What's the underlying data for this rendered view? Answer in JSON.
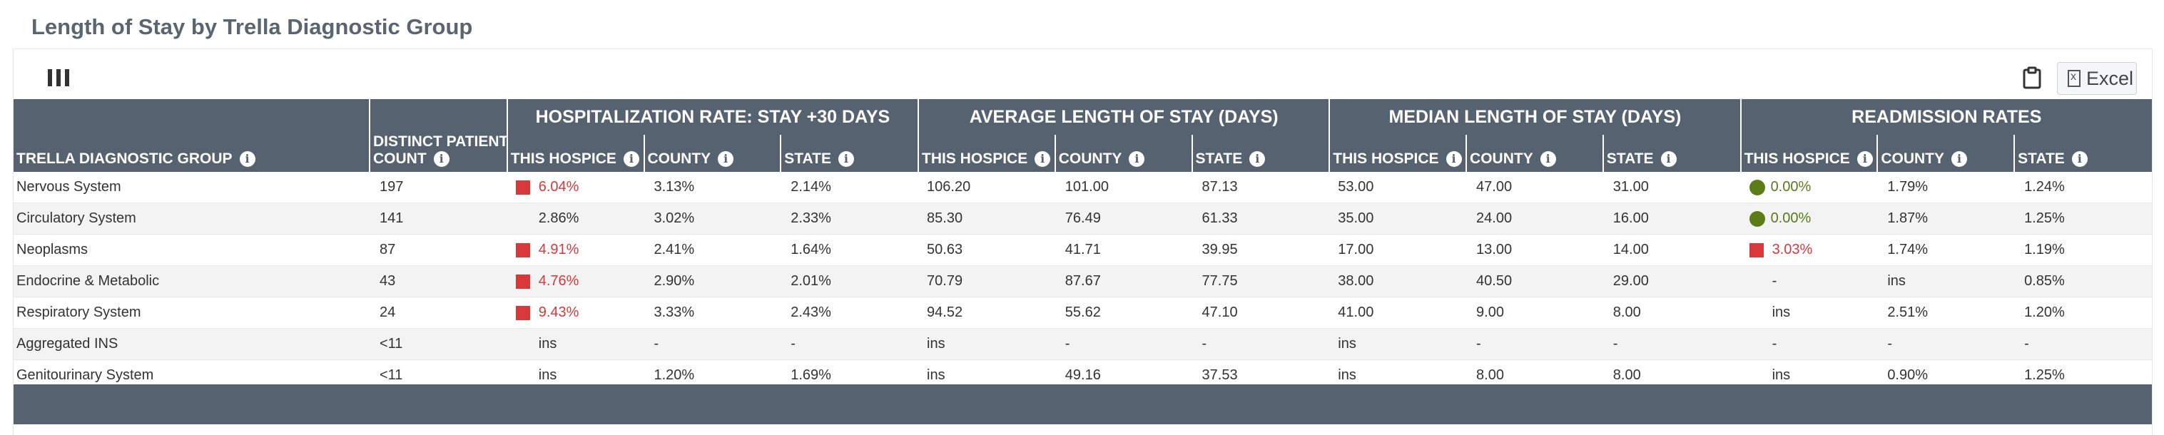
{
  "title": "Length of Stay by Trella Diagnostic Group",
  "toolbar": {
    "excel_label": "Excel"
  },
  "colors": {
    "header": "#566270",
    "bad": "#d9383a",
    "good": "#5c7c17"
  },
  "header": {
    "group_col": "TRELLA DIAGNOSTIC GROUP",
    "count_col_line1": "DISTINCT PATIENT",
    "count_col_line2": "COUNT",
    "groups": [
      "HOSPITALIZATION RATE: STAY +30 DAYS",
      "AVERAGE LENGTH OF STAY (DAYS)",
      "MEDIAN LENGTH OF STAY (DAYS)",
      "READMISSION RATES"
    ],
    "sub": [
      "THIS HOSPICE",
      "COUNTY",
      "STATE"
    ]
  },
  "rows": [
    {
      "group": "Nervous System",
      "count": "197",
      "cells": [
        {
          "v": "6.04%",
          "flag": "red"
        },
        {
          "v": "3.13%"
        },
        {
          "v": "2.14%"
        },
        {
          "v": "106.20"
        },
        {
          "v": "101.00"
        },
        {
          "v": "87.13"
        },
        {
          "v": "53.00"
        },
        {
          "v": "47.00"
        },
        {
          "v": "31.00"
        },
        {
          "v": "0.00%",
          "flag": "green"
        },
        {
          "v": "1.79%"
        },
        {
          "v": "1.24%"
        }
      ]
    },
    {
      "group": "Circulatory System",
      "count": "141",
      "cells": [
        {
          "v": "2.86%",
          "flag": "none"
        },
        {
          "v": "3.02%"
        },
        {
          "v": "2.33%"
        },
        {
          "v": "85.30"
        },
        {
          "v": "76.49"
        },
        {
          "v": "61.33"
        },
        {
          "v": "35.00"
        },
        {
          "v": "24.00"
        },
        {
          "v": "16.00"
        },
        {
          "v": "0.00%",
          "flag": "green"
        },
        {
          "v": "1.87%"
        },
        {
          "v": "1.25%"
        }
      ]
    },
    {
      "group": "Neoplasms",
      "count": "87",
      "cells": [
        {
          "v": "4.91%",
          "flag": "red"
        },
        {
          "v": "2.41%"
        },
        {
          "v": "1.64%"
        },
        {
          "v": "50.63"
        },
        {
          "v": "41.71"
        },
        {
          "v": "39.95"
        },
        {
          "v": "17.00"
        },
        {
          "v": "13.00"
        },
        {
          "v": "14.00"
        },
        {
          "v": "3.03%",
          "flag": "red"
        },
        {
          "v": "1.74%"
        },
        {
          "v": "1.19%"
        }
      ]
    },
    {
      "group": "Endocrine & Metabolic",
      "count": "43",
      "cells": [
        {
          "v": "4.76%",
          "flag": "red"
        },
        {
          "v": "2.90%"
        },
        {
          "v": "2.01%"
        },
        {
          "v": "70.79"
        },
        {
          "v": "87.67"
        },
        {
          "v": "77.75"
        },
        {
          "v": "38.00"
        },
        {
          "v": "40.50"
        },
        {
          "v": "29.00"
        },
        {
          "v": "-",
          "flag": "none"
        },
        {
          "v": "ins"
        },
        {
          "v": "0.85%"
        }
      ]
    },
    {
      "group": "Respiratory System",
      "count": "24",
      "cells": [
        {
          "v": "9.43%",
          "flag": "red"
        },
        {
          "v": "3.33%"
        },
        {
          "v": "2.43%"
        },
        {
          "v": "94.52"
        },
        {
          "v": "55.62"
        },
        {
          "v": "47.10"
        },
        {
          "v": "41.00"
        },
        {
          "v": "9.00"
        },
        {
          "v": "8.00"
        },
        {
          "v": "ins",
          "flag": "none"
        },
        {
          "v": "2.51%"
        },
        {
          "v": "1.20%"
        }
      ]
    },
    {
      "group": "Aggregated INS",
      "count": "<11",
      "cells": [
        {
          "v": "ins",
          "flag": "none"
        },
        {
          "v": "-"
        },
        {
          "v": "-"
        },
        {
          "v": "ins"
        },
        {
          "v": "-"
        },
        {
          "v": "-"
        },
        {
          "v": "ins"
        },
        {
          "v": "-"
        },
        {
          "v": "-"
        },
        {
          "v": "-",
          "flag": "none"
        },
        {
          "v": "-"
        },
        {
          "v": "-"
        }
      ]
    },
    {
      "group": "Genitourinary System",
      "count": "<11",
      "cells": [
        {
          "v": "ins",
          "flag": "none"
        },
        {
          "v": "1.20%"
        },
        {
          "v": "1.69%"
        },
        {
          "v": "ins"
        },
        {
          "v": "49.16"
        },
        {
          "v": "37.53"
        },
        {
          "v": "ins"
        },
        {
          "v": "8.00"
        },
        {
          "v": "8.00"
        },
        {
          "v": "ins",
          "flag": "none"
        },
        {
          "v": "0.90%"
        },
        {
          "v": "1.25%"
        }
      ]
    }
  ]
}
